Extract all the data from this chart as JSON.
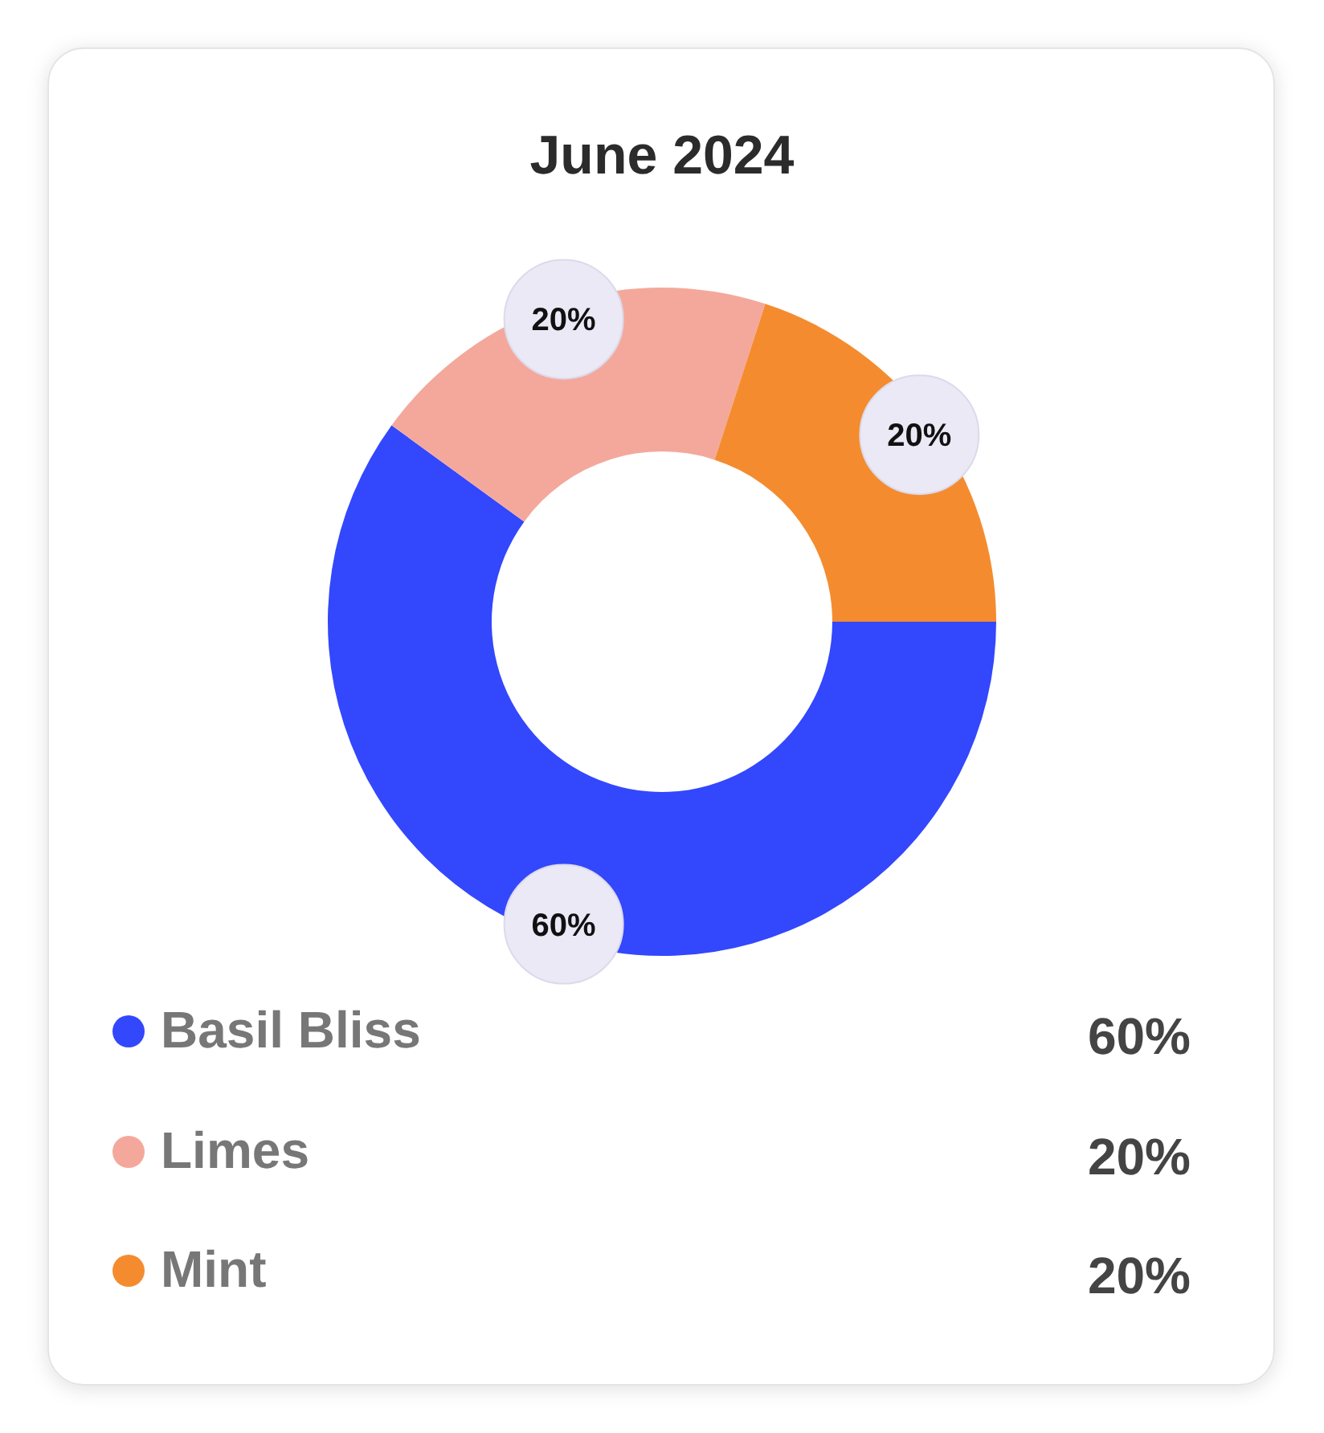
{
  "chart_data": {
    "type": "donut",
    "title": "June 2024",
    "categories": [
      "Basil Bliss",
      "Limes",
      "Mint"
    ],
    "values": [
      60,
      20,
      20
    ],
    "colors": [
      "#3347fd",
      "#f4a89c",
      "#f48c2f"
    ],
    "value_labels": [
      "60%",
      "20%",
      "20%"
    ],
    "legend": "bottom"
  }
}
